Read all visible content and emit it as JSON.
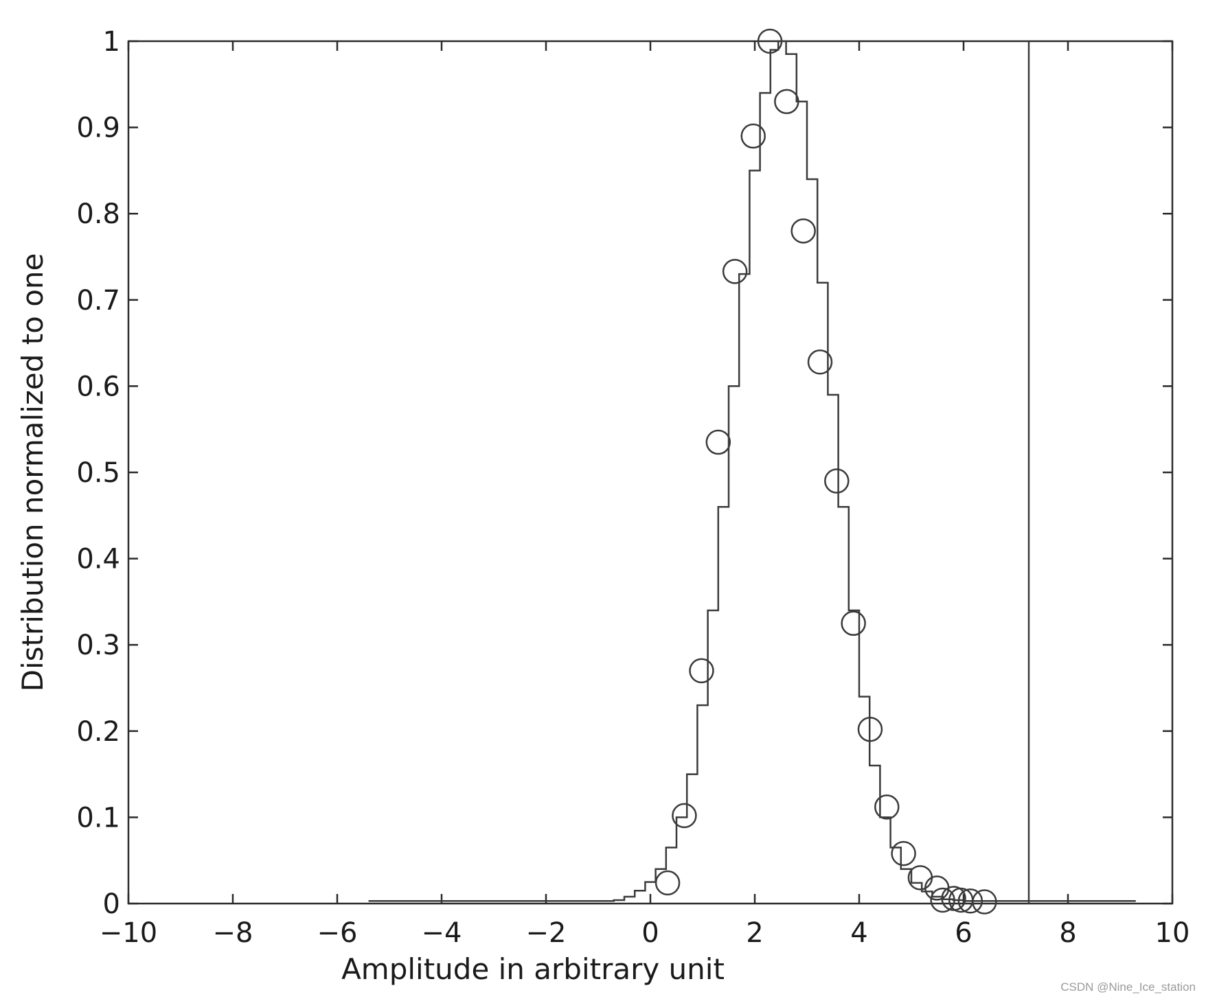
{
  "chart_data": {
    "type": "line",
    "title": "",
    "xlabel": "Amplitude in arbitrary unit",
    "ylabel": "Distribution normalized to one",
    "xlim": [
      -10,
      10
    ],
    "ylim": [
      0,
      1
    ],
    "xticks": [
      -10,
      -8,
      -6,
      -4,
      -2,
      0,
      2,
      4,
      6,
      8,
      10
    ],
    "xtick_labels": [
      "−10",
      "−8",
      "−6",
      "−4",
      "−2",
      "0",
      "2",
      "4",
      "6",
      "8",
      "10"
    ],
    "yticks": [
      0,
      0.1,
      0.2,
      0.3,
      0.4,
      0.5,
      0.6,
      0.7,
      0.8,
      0.9,
      1
    ],
    "ytick_labels": [
      "0",
      "0.1",
      "0.2",
      "0.3",
      "0.4",
      "0.5",
      "0.6",
      "0.7",
      "0.8",
      "0.9",
      "1"
    ],
    "grid": false,
    "series": [
      {
        "style": "step-line",
        "color": "#3a3a3a",
        "x": [
          -5.4,
          -4.0,
          -2.0,
          -0.7,
          -0.5,
          -0.3,
          -0.1,
          0.1,
          0.3,
          0.5,
          0.7,
          0.9,
          1.1,
          1.3,
          1.5,
          1.7,
          1.9,
          2.1,
          2.3,
          2.45,
          2.6,
          2.8,
          3.0,
          3.2,
          3.4,
          3.6,
          3.8,
          4.0,
          4.2,
          4.4,
          4.6,
          4.8,
          5.0,
          5.2,
          5.4,
          5.6,
          5.8,
          6.0,
          6.3,
          6.8,
          8.0,
          9.3
        ],
        "y": [
          0.003,
          0.003,
          0.003,
          0.004,
          0.008,
          0.015,
          0.025,
          0.04,
          0.065,
          0.1,
          0.15,
          0.23,
          0.34,
          0.46,
          0.6,
          0.73,
          0.85,
          0.94,
          0.99,
          1.0,
          0.985,
          0.93,
          0.84,
          0.72,
          0.59,
          0.46,
          0.34,
          0.24,
          0.16,
          0.1,
          0.065,
          0.04,
          0.024,
          0.014,
          0.008,
          0.005,
          0.004,
          0.003,
          0.003,
          0.003,
          0.003,
          0.003
        ]
      },
      {
        "style": "markers",
        "marker": "circle",
        "color": "#3a3a3a",
        "x": [
          0.33,
          0.65,
          0.98,
          1.3,
          1.62,
          1.97,
          2.29,
          2.61,
          2.93,
          3.25,
          3.57,
          3.89,
          4.21,
          4.53,
          4.85,
          5.17,
          5.49,
          5.6,
          5.81,
          5.95,
          6.13,
          6.4
        ],
        "y": [
          0.024,
          0.102,
          0.27,
          0.535,
          0.733,
          0.89,
          1.0,
          0.93,
          0.78,
          0.628,
          0.49,
          0.325,
          0.202,
          0.112,
          0.058,
          0.03,
          0.018,
          0.004,
          0.006,
          0.004,
          0.003,
          0.002
        ]
      },
      {
        "style": "vertical-line",
        "color": "#3a3a3a",
        "x": 7.25
      }
    ]
  },
  "watermark": "CSDN @Nine_Ice_station"
}
